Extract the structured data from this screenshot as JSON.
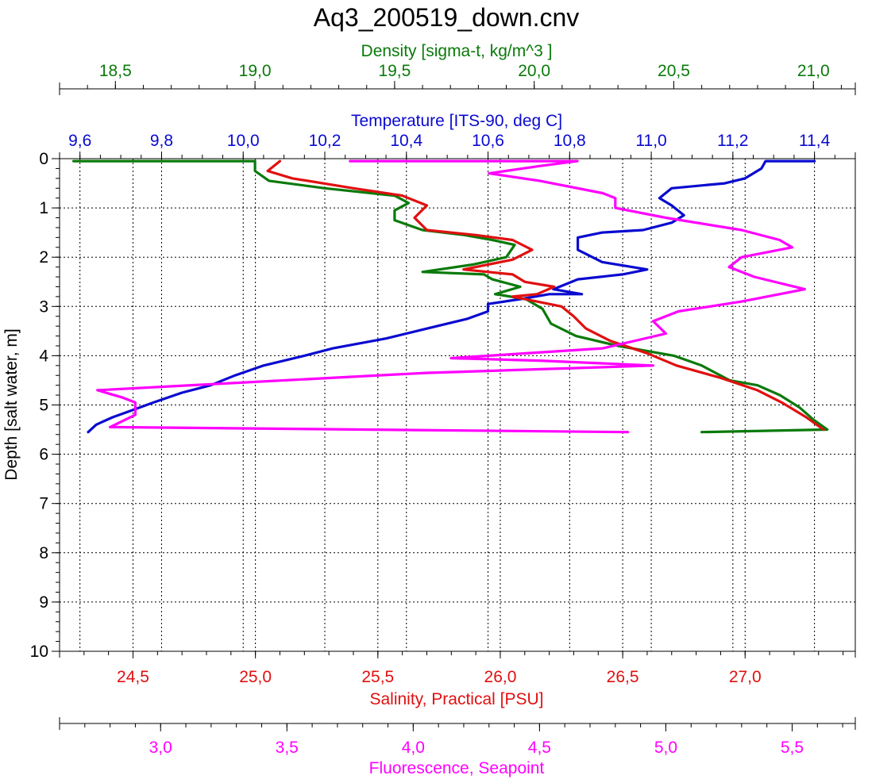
{
  "colors": {
    "density": "#0a7a0a",
    "temperature": "#0a0ad0",
    "salinity": "#e01010",
    "fluorescence": "#ff00ff",
    "axis": "#000000",
    "grid": "#000000"
  },
  "chart_data": {
    "type": "line",
    "title": "Aq3_200519_down.cnv",
    "y_axis": {
      "label": "Depth [salt water, m]",
      "range": [
        0,
        10
      ],
      "reversed": true,
      "ticks": [
        "0",
        "1",
        "2",
        "3",
        "4",
        "5",
        "6",
        "7",
        "8",
        "9",
        "10"
      ]
    },
    "grid": true,
    "axes": {
      "density": {
        "label": "Density [sigma-t, kg/m^3 ]",
        "position": "top-outer",
        "range": [
          18.3,
          21.15
        ],
        "ticks": [
          18.5,
          19.0,
          19.5,
          20.0,
          20.5,
          21.0
        ],
        "tick_labels": [
          "18,5",
          "19,0",
          "19,5",
          "20,0",
          "20,5",
          "21,0"
        ]
      },
      "temperature": {
        "label": "Temperature [ITS-90, deg C]",
        "position": "top-inner",
        "range": [
          9.55,
          11.5
        ],
        "ticks": [
          9.6,
          9.8,
          10.0,
          10.2,
          10.4,
          10.6,
          10.8,
          11.0,
          11.2,
          11.4
        ],
        "tick_labels": [
          "9,6",
          "9,8",
          "10,0",
          "10,2",
          "10,4",
          "10,6",
          "10,8",
          "11,0",
          "11,2",
          "11,4"
        ]
      },
      "salinity": {
        "label": "Salinity, Practical [PSU]",
        "position": "bottom-inner",
        "range": [
          24.2,
          27.45
        ],
        "ticks": [
          24.5,
          25.0,
          25.5,
          26.0,
          26.5,
          27.0
        ],
        "tick_labels": [
          "24,5",
          "25,0",
          "25,5",
          "26,0",
          "26,5",
          "27,0"
        ]
      },
      "fluorescence": {
        "label": "Fluorescence, Seapoint",
        "position": "bottom-outer",
        "range": [
          2.6,
          5.75
        ],
        "ticks": [
          3.0,
          3.5,
          4.0,
          4.5,
          5.0,
          5.5
        ],
        "tick_labels": [
          "3,0",
          "3,5",
          "4,0",
          "4,5",
          "5,0",
          "5,5"
        ]
      }
    },
    "series": [
      {
        "key": "temperature",
        "points": [
          [
            11.4,
            0.05
          ],
          [
            11.28,
            0.05
          ],
          [
            11.27,
            0.2
          ],
          [
            11.23,
            0.4
          ],
          [
            11.18,
            0.5
          ],
          [
            11.05,
            0.6
          ],
          [
            11.02,
            0.8
          ],
          [
            11.05,
            0.95
          ],
          [
            11.08,
            1.15
          ],
          [
            11.05,
            1.3
          ],
          [
            10.98,
            1.45
          ],
          [
            10.88,
            1.5
          ],
          [
            10.82,
            1.6
          ],
          [
            10.82,
            1.85
          ],
          [
            10.88,
            2.1
          ],
          [
            10.99,
            2.25
          ],
          [
            10.93,
            2.35
          ],
          [
            10.82,
            2.45
          ],
          [
            10.76,
            2.65
          ],
          [
            10.83,
            2.75
          ],
          [
            10.75,
            2.75
          ],
          [
            10.68,
            2.85
          ],
          [
            10.6,
            2.95
          ],
          [
            10.6,
            3.1
          ],
          [
            10.55,
            3.25
          ],
          [
            10.45,
            3.45
          ],
          [
            10.35,
            3.65
          ],
          [
            10.22,
            3.85
          ],
          [
            10.15,
            4.0
          ],
          [
            10.05,
            4.2
          ],
          [
            9.98,
            4.4
          ],
          [
            9.92,
            4.6
          ],
          [
            9.85,
            4.75
          ],
          [
            9.78,
            4.95
          ],
          [
            9.73,
            5.1
          ],
          [
            9.68,
            5.25
          ],
          [
            9.64,
            5.4
          ],
          [
            9.62,
            5.55
          ]
        ]
      },
      {
        "key": "density",
        "points": [
          [
            18.35,
            0.05
          ],
          [
            19.0,
            0.05
          ],
          [
            19.0,
            0.25
          ],
          [
            19.05,
            0.45
          ],
          [
            19.25,
            0.6
          ],
          [
            19.5,
            0.75
          ],
          [
            19.55,
            0.9
          ],
          [
            19.5,
            1.05
          ],
          [
            19.5,
            1.25
          ],
          [
            19.6,
            1.45
          ],
          [
            19.75,
            1.55
          ],
          [
            19.85,
            1.65
          ],
          [
            19.93,
            1.75
          ],
          [
            19.9,
            2.0
          ],
          [
            19.78,
            2.15
          ],
          [
            19.6,
            2.3
          ],
          [
            19.82,
            2.35
          ],
          [
            19.85,
            2.45
          ],
          [
            19.95,
            2.6
          ],
          [
            19.86,
            2.75
          ],
          [
            19.97,
            2.85
          ],
          [
            20.03,
            3.05
          ],
          [
            20.06,
            3.35
          ],
          [
            20.15,
            3.6
          ],
          [
            20.3,
            3.8
          ],
          [
            20.5,
            4.0
          ],
          [
            20.6,
            4.2
          ],
          [
            20.7,
            4.5
          ],
          [
            20.8,
            4.6
          ],
          [
            20.88,
            4.8
          ],
          [
            20.95,
            5.05
          ],
          [
            21.0,
            5.3
          ],
          [
            21.05,
            5.5
          ],
          [
            20.6,
            5.55
          ]
        ]
      },
      {
        "key": "salinity",
        "points": [
          [
            25.1,
            0.05
          ],
          [
            25.05,
            0.25
          ],
          [
            25.15,
            0.4
          ],
          [
            25.4,
            0.6
          ],
          [
            25.6,
            0.75
          ],
          [
            25.7,
            0.95
          ],
          [
            25.65,
            1.2
          ],
          [
            25.7,
            1.45
          ],
          [
            25.9,
            1.55
          ],
          [
            26.05,
            1.65
          ],
          [
            26.13,
            1.85
          ],
          [
            26.05,
            2.05
          ],
          [
            25.85,
            2.25
          ],
          [
            26.05,
            2.35
          ],
          [
            26.1,
            2.5
          ],
          [
            26.22,
            2.6
          ],
          [
            26.15,
            2.75
          ],
          [
            26.05,
            2.8
          ],
          [
            26.25,
            3.0
          ],
          [
            26.3,
            3.2
          ],
          [
            26.35,
            3.45
          ],
          [
            26.45,
            3.7
          ],
          [
            26.6,
            3.95
          ],
          [
            26.72,
            4.2
          ],
          [
            26.9,
            4.45
          ],
          [
            27.05,
            4.7
          ],
          [
            27.15,
            4.95
          ],
          [
            27.25,
            5.25
          ],
          [
            27.32,
            5.5
          ]
        ]
      },
      {
        "key": "fluorescence",
        "points": [
          [
            3.75,
            0.05
          ],
          [
            4.65,
            0.05
          ],
          [
            4.5,
            0.15
          ],
          [
            4.3,
            0.3
          ],
          [
            4.5,
            0.45
          ],
          [
            4.75,
            0.7
          ],
          [
            4.8,
            0.8
          ],
          [
            4.8,
            1.0
          ],
          [
            5.0,
            1.2
          ],
          [
            5.3,
            1.45
          ],
          [
            5.45,
            1.65
          ],
          [
            5.5,
            1.8
          ],
          [
            5.3,
            2.0
          ],
          [
            5.25,
            2.2
          ],
          [
            5.35,
            2.4
          ],
          [
            5.55,
            2.65
          ],
          [
            5.45,
            2.75
          ],
          [
            5.3,
            2.9
          ],
          [
            5.05,
            3.1
          ],
          [
            4.95,
            3.3
          ],
          [
            5.0,
            3.55
          ],
          [
            4.75,
            3.85
          ],
          [
            4.3,
            4.0
          ],
          [
            4.15,
            4.05
          ],
          [
            4.5,
            4.1
          ],
          [
            4.95,
            4.2
          ],
          [
            4.05,
            4.35
          ],
          [
            3.3,
            4.55
          ],
          [
            2.75,
            4.7
          ],
          [
            2.85,
            4.85
          ],
          [
            2.9,
            4.95
          ],
          [
            2.9,
            5.2
          ],
          [
            2.8,
            5.45
          ],
          [
            4.85,
            5.55
          ]
        ]
      }
    ]
  }
}
